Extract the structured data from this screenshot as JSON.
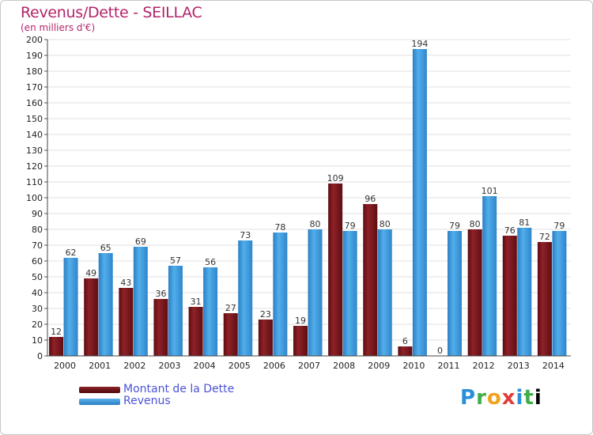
{
  "title": "Revenus/Dette - SEILLAC",
  "subtitle": "(en milliers d'€)",
  "legend": {
    "debt_label": "Montant de la Dette",
    "revenue_label": "Revenus"
  },
  "logo": "Proxiti",
  "colors": {
    "debt": "#7a1418",
    "revenue": "#3a9ae0",
    "title": "#b3246a",
    "legend_text": "#4a53d6"
  },
  "chart_data": {
    "type": "bar",
    "title": "Revenus/Dette - SEILLAC",
    "ylabel": "(en milliers d'€)",
    "xlabel": "",
    "ylim": [
      0,
      200
    ],
    "ytick_step": 10,
    "categories": [
      "2000",
      "2001",
      "2002",
      "2003",
      "2004",
      "2005",
      "2006",
      "2007",
      "2008",
      "2009",
      "2010",
      "2011",
      "2012",
      "2013",
      "2014"
    ],
    "series": [
      {
        "name": "Montant de la Dette",
        "values": [
          12,
          49,
          43,
          36,
          31,
          27,
          23,
          19,
          109,
          96,
          6,
          0,
          80,
          76,
          72
        ]
      },
      {
        "name": "Revenus",
        "values": [
          62,
          65,
          69,
          57,
          56,
          73,
          78,
          80,
          79,
          80,
          194,
          79,
          101,
          81,
          79
        ]
      }
    ]
  }
}
